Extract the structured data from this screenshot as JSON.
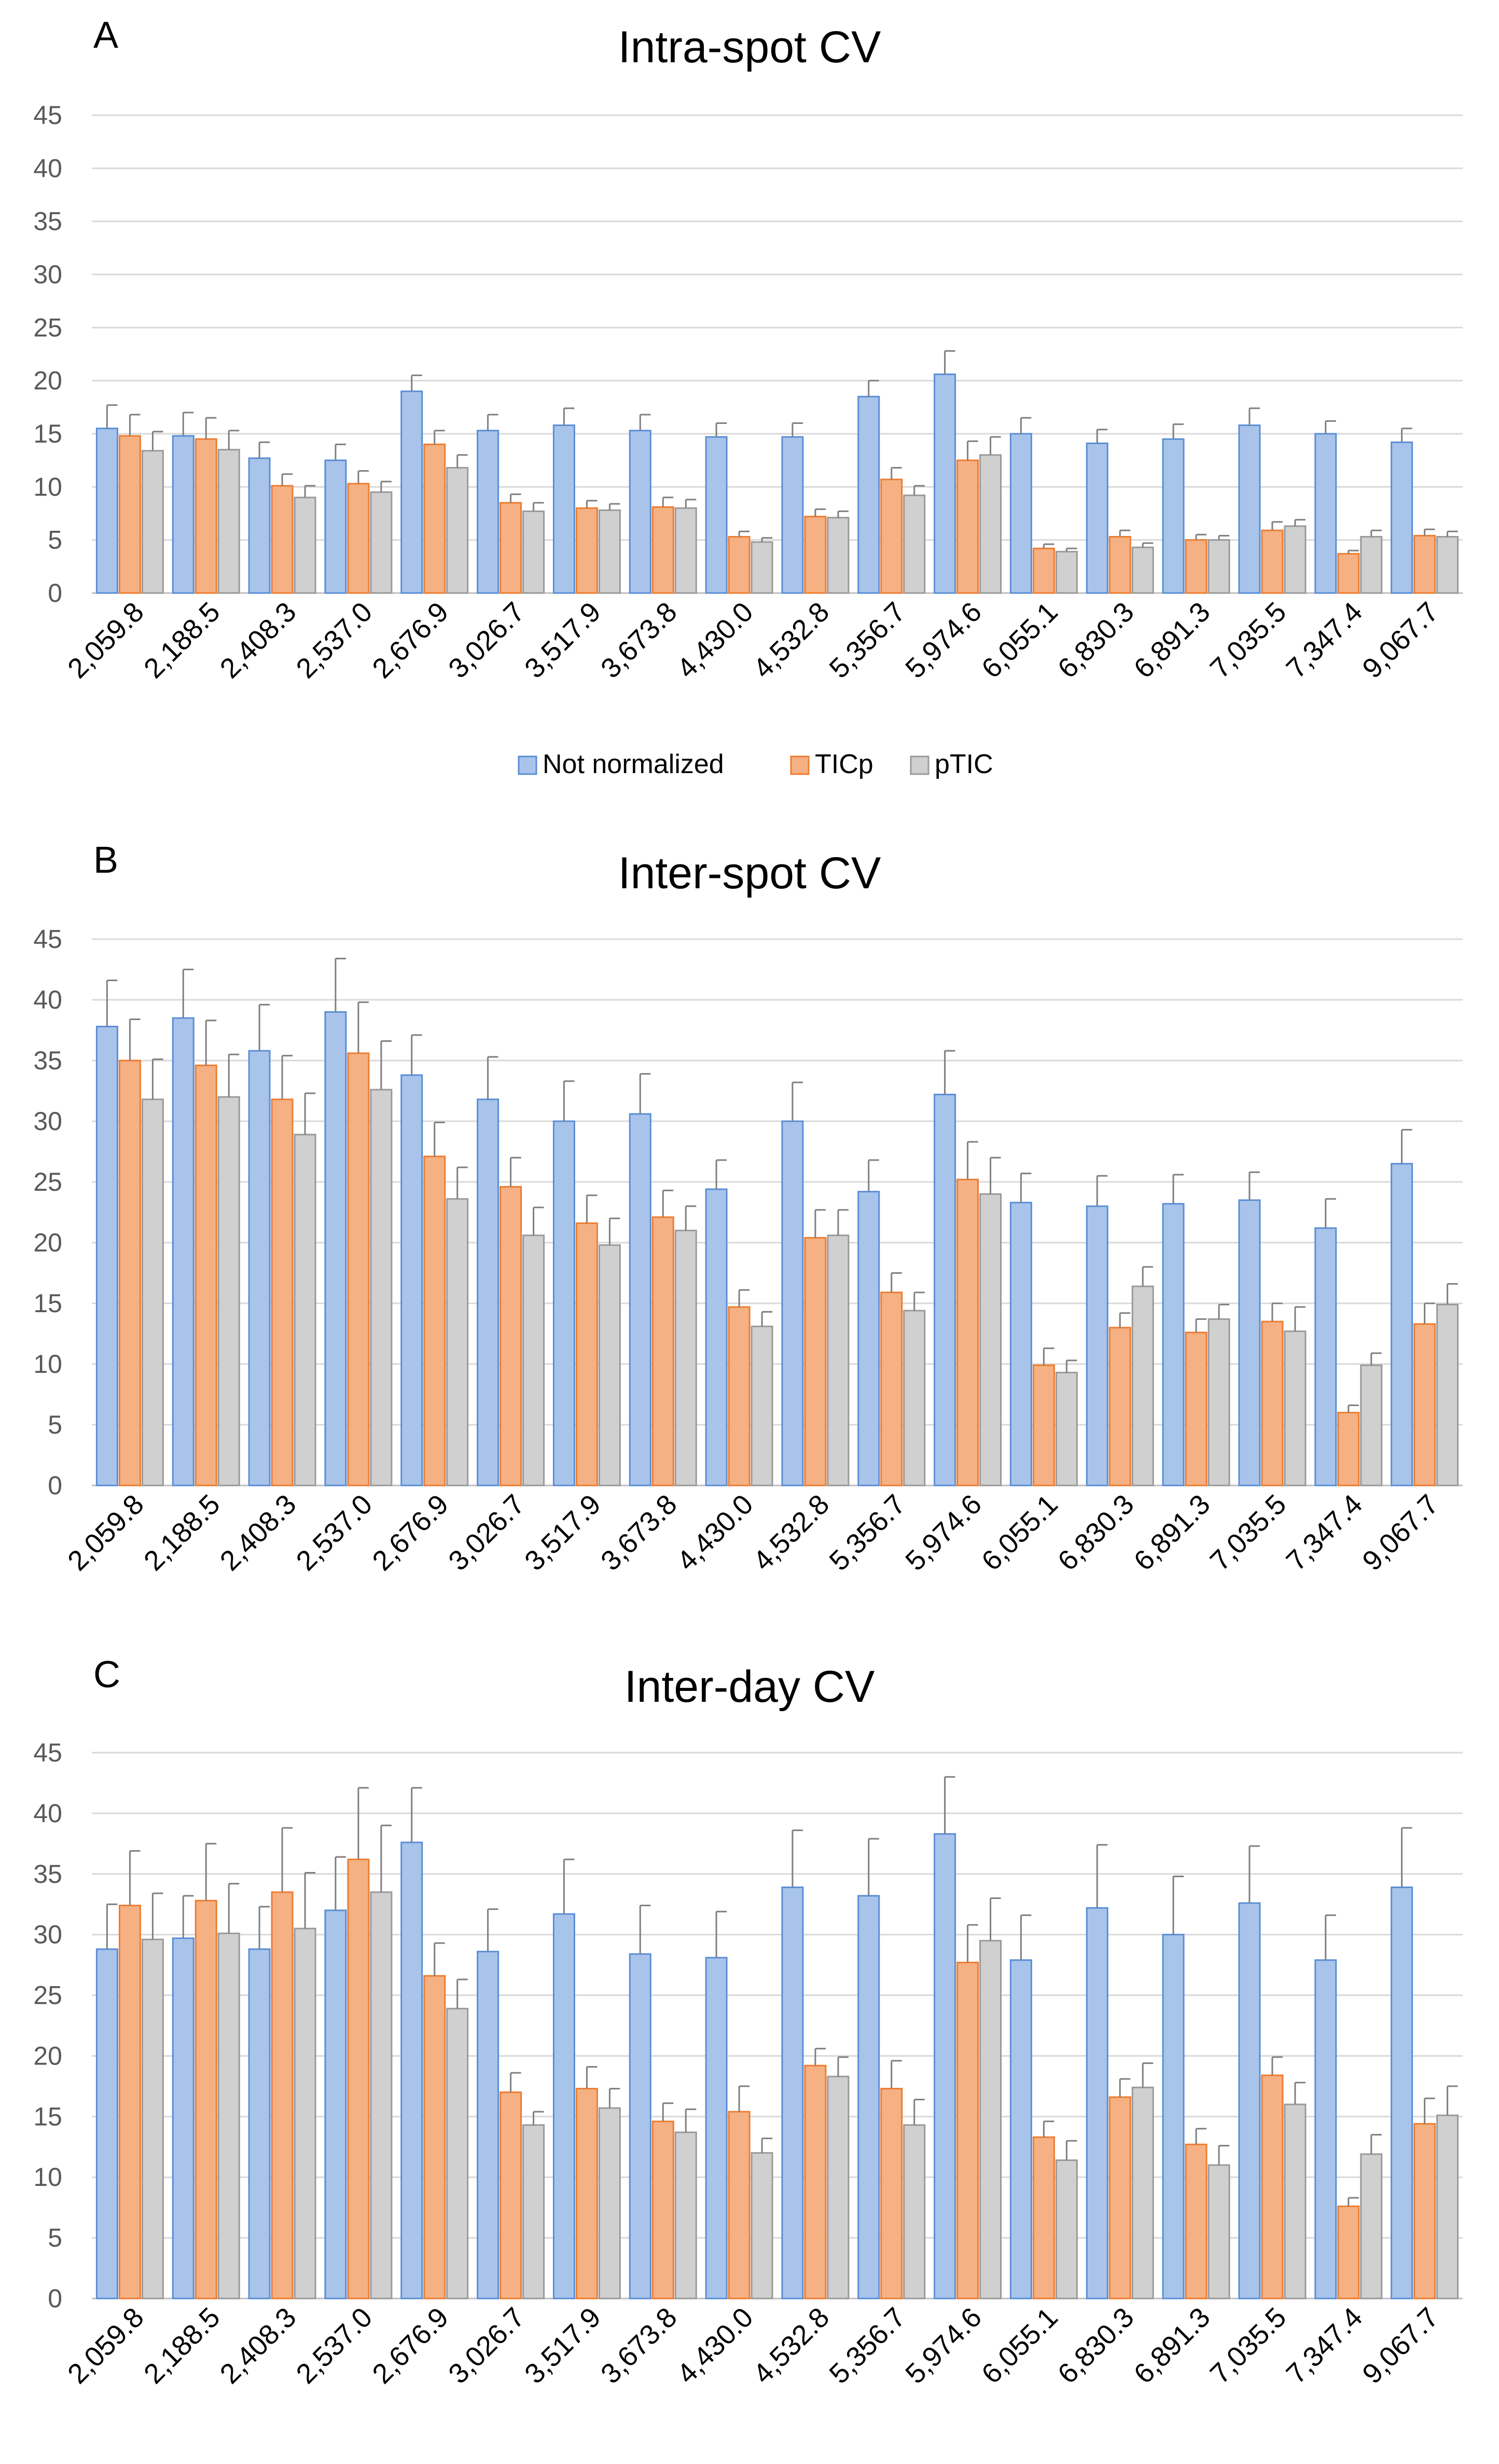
{
  "legend": {
    "items": [
      {
        "name": "Not normalized",
        "fill": "#a9c4eb",
        "stroke": "#5b8ed6"
      },
      {
        "name": "TICp",
        "fill": "#f5b183",
        "stroke": "#ed7d31"
      },
      {
        "name": "pTIC",
        "fill": "#d0d0d0",
        "stroke": "#9a9a9a"
      }
    ]
  },
  "chart_data": [
    {
      "type": "bar",
      "panel": "A",
      "title": "Intra-spot CV",
      "xlabel": "",
      "ylabel": "",
      "ylim": [
        0,
        45
      ],
      "yticks": [
        0,
        5,
        10,
        15,
        20,
        25,
        30,
        35,
        40,
        45
      ],
      "categories": [
        "2,059.8",
        "2,188.5",
        "2,408.3",
        "2,537.0",
        "2,676.9",
        "3,026.7",
        "3,517.9",
        "3,673.8",
        "4,430.0",
        "4,532.8",
        "5,356.7",
        "5,974.6",
        "6,055.1",
        "6,830.3",
        "6,891.3",
        "7,035.5",
        "7,347.4",
        "9,067.7"
      ],
      "series": [
        {
          "name": "Not normalized",
          "values": [
            15.5,
            14.8,
            12.7,
            12.5,
            19.0,
            15.3,
            15.8,
            15.3,
            14.7,
            14.7,
            18.5,
            20.6,
            15.0,
            14.1,
            14.5,
            15.8,
            15.0,
            14.2
          ],
          "errors": [
            2.2,
            2.2,
            1.5,
            1.5,
            1.5,
            1.5,
            1.6,
            1.5,
            1.3,
            1.3,
            1.5,
            2.2,
            1.5,
            1.3,
            1.4,
            1.6,
            1.2,
            1.3
          ]
        },
        {
          "name": "TICp",
          "values": [
            14.8,
            14.5,
            10.1,
            10.3,
            14.0,
            8.5,
            8.0,
            8.1,
            5.3,
            7.2,
            10.7,
            12.5,
            4.2,
            5.3,
            5.0,
            5.9,
            3.7,
            5.4
          ],
          "errors": [
            2.0,
            2.0,
            1.1,
            1.2,
            1.3,
            0.8,
            0.7,
            0.9,
            0.5,
            0.7,
            1.1,
            1.8,
            0.4,
            0.6,
            0.5,
            0.8,
            0.3,
            0.6
          ]
        },
        {
          "name": "pTIC",
          "values": [
            13.4,
            13.5,
            9.0,
            9.5,
            11.8,
            7.7,
            7.8,
            8.0,
            4.8,
            7.1,
            9.2,
            13.0,
            3.9,
            4.3,
            5.0,
            6.3,
            5.3,
            5.3
          ],
          "errors": [
            1.8,
            1.8,
            1.1,
            1.0,
            1.2,
            0.8,
            0.6,
            0.8,
            0.4,
            0.6,
            0.9,
            1.7,
            0.3,
            0.4,
            0.4,
            0.6,
            0.6,
            0.5
          ]
        }
      ]
    },
    {
      "type": "bar",
      "panel": "B",
      "title": "Inter-spot CV",
      "xlabel": "",
      "ylabel": "",
      "ylim": [
        0,
        45
      ],
      "yticks": [
        0,
        5,
        10,
        15,
        20,
        25,
        30,
        35,
        40,
        45
      ],
      "categories": [
        "2,059.8",
        "2,188.5",
        "2,408.3",
        "2,537.0",
        "2,676.9",
        "3,026.7",
        "3,517.9",
        "3,673.8",
        "4,430.0",
        "4,532.8",
        "5,356.7",
        "5,974.6",
        "6,055.1",
        "6,830.3",
        "6,891.3",
        "7,035.5",
        "7,347.4",
        "9,067.7"
      ],
      "series": [
        {
          "name": "Not normalized",
          "values": [
            37.8,
            38.5,
            35.8,
            39.0,
            33.8,
            31.8,
            30.0,
            30.6,
            24.4,
            30.0,
            24.2,
            32.2,
            23.3,
            23.0,
            23.2,
            23.5,
            21.2,
            26.5
          ],
          "errors": [
            3.8,
            4.0,
            3.8,
            4.4,
            3.3,
            3.5,
            3.3,
            3.3,
            2.4,
            3.2,
            2.6,
            3.6,
            2.4,
            2.5,
            2.4,
            2.3,
            2.4,
            2.8
          ]
        },
        {
          "name": "TICp",
          "values": [
            35.0,
            34.6,
            31.8,
            35.6,
            27.1,
            24.6,
            21.6,
            22.1,
            14.7,
            20.4,
            15.9,
            25.2,
            9.9,
            13.0,
            12.6,
            13.5,
            6.0,
            13.3
          ],
          "errors": [
            3.4,
            3.7,
            3.6,
            4.2,
            2.8,
            2.4,
            2.3,
            2.2,
            1.4,
            2.3,
            1.6,
            3.1,
            1.4,
            1.2,
            1.1,
            1.5,
            0.6,
            1.7
          ]
        },
        {
          "name": "pTIC",
          "values": [
            31.8,
            32.0,
            28.9,
            32.6,
            23.6,
            20.6,
            19.8,
            21.0,
            13.1,
            20.6,
            14.4,
            24.0,
            9.3,
            16.4,
            13.7,
            12.7,
            9.9,
            14.9
          ],
          "errors": [
            3.3,
            3.5,
            3.4,
            4.0,
            2.6,
            2.3,
            2.2,
            2.0,
            1.2,
            2.1,
            1.5,
            3.0,
            1.0,
            1.6,
            1.2,
            2.0,
            1.0,
            1.7
          ]
        }
      ]
    },
    {
      "type": "bar",
      "panel": "C",
      "title": "Inter-day CV",
      "xlabel": "",
      "ylabel": "",
      "ylim": [
        0,
        45
      ],
      "yticks": [
        0,
        5,
        10,
        15,
        20,
        25,
        30,
        35,
        40,
        45
      ],
      "categories": [
        "2,059.8",
        "2,188.5",
        "2,408.3",
        "2,537.0",
        "2,676.9",
        "3,026.7",
        "3,517.9",
        "3,673.8",
        "4,430.0",
        "4,532.8",
        "5,356.7",
        "5,974.6",
        "6,055.1",
        "6,830.3",
        "6,891.3",
        "7,035.5",
        "7,347.4",
        "9,067.7"
      ],
      "series": [
        {
          "name": "Not normalized",
          "values": [
            28.8,
            29.7,
            28.8,
            32.0,
            37.6,
            28.6,
            31.7,
            28.4,
            28.1,
            33.9,
            33.2,
            38.3,
            27.9,
            32.2,
            30.0,
            32.6,
            27.9,
            33.9
          ],
          "errors": [
            3.7,
            3.5,
            3.5,
            4.4,
            4.5,
            3.5,
            4.5,
            4.0,
            3.8,
            4.7,
            4.7,
            4.7,
            3.7,
            5.2,
            4.8,
            4.7,
            3.7,
            4.9
          ]
        },
        {
          "name": "TICp",
          "values": [
            32.4,
            32.8,
            33.5,
            36.2,
            26.6,
            17.0,
            17.3,
            14.6,
            15.4,
            19.2,
            17.3,
            27.7,
            13.3,
            16.6,
            12.7,
            18.4,
            7.6,
            14.4
          ],
          "errors": [
            4.5,
            4.7,
            5.3,
            5.9,
            2.7,
            1.6,
            1.8,
            1.5,
            2.1,
            1.4,
            2.3,
            3.1,
            1.3,
            1.5,
            1.3,
            1.5,
            0.7,
            2.1
          ]
        },
        {
          "name": "pTIC",
          "values": [
            29.6,
            30.1,
            30.5,
            33.5,
            23.9,
            14.3,
            15.7,
            13.7,
            12.0,
            18.3,
            14.3,
            29.5,
            11.4,
            17.4,
            11.0,
            16.0,
            11.9,
            15.1
          ],
          "errors": [
            3.8,
            4.1,
            4.6,
            5.5,
            2.4,
            1.1,
            1.6,
            1.9,
            1.2,
            1.6,
            2.1,
            3.5,
            1.6,
            2.0,
            1.6,
            1.8,
            1.6,
            2.4
          ]
        }
      ]
    }
  ]
}
